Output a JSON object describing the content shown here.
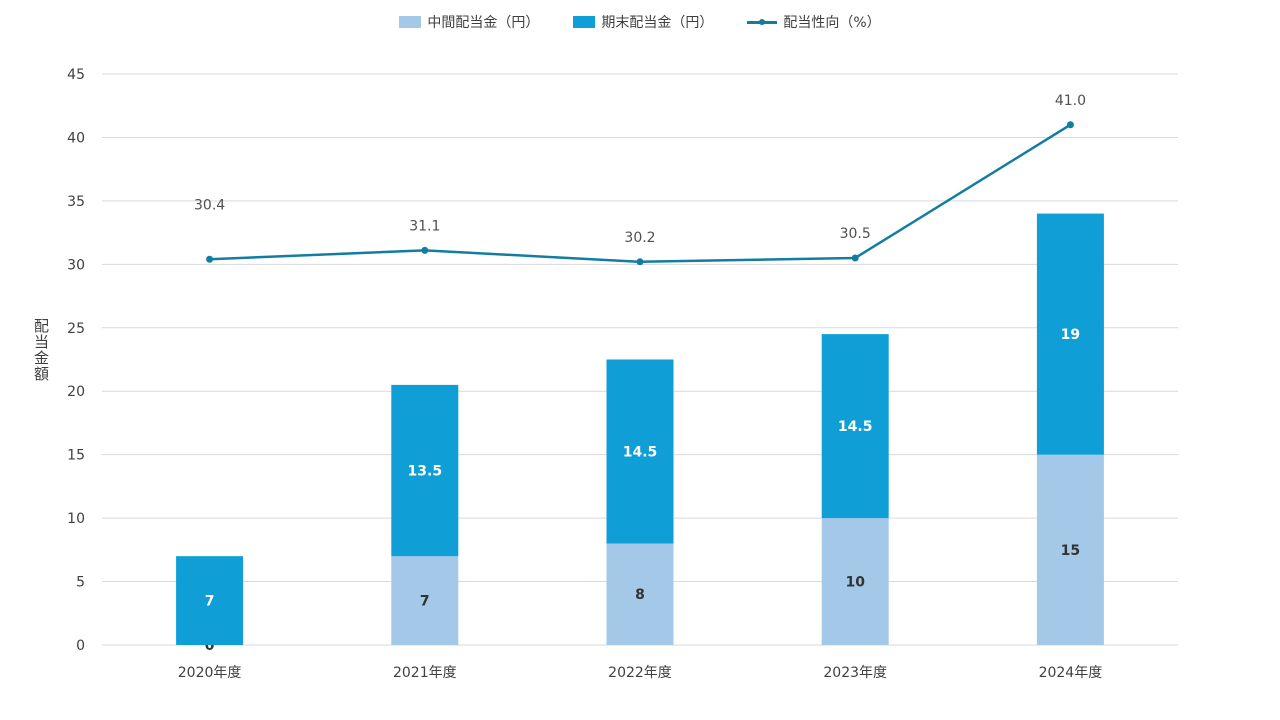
{
  "chart_data": {
    "type": "bar",
    "stacked": true,
    "categories": [
      "2020年度",
      "2021年度",
      "2022年度",
      "2023年度",
      "2024年度"
    ],
    "series": [
      {
        "name": "中間配当金（円）",
        "type": "bar",
        "values": [
          0,
          7,
          8,
          10,
          15
        ],
        "color": "#A3C8E8",
        "label_color": "#333333"
      },
      {
        "name": "期末配当金（円）",
        "type": "bar",
        "values": [
          7,
          13.5,
          14.5,
          14.5,
          19
        ],
        "color": "#0F9ED5",
        "label_color": "#FFFFFF"
      },
      {
        "name": "配当性向（%）",
        "type": "line",
        "values": [
          30.4,
          31.1,
          30.2,
          30.5,
          41.0
        ],
        "labels": [
          "30.4",
          "31.1",
          "30.2",
          "30.5",
          "41.0"
        ],
        "color": "#127CA1"
      }
    ],
    "ylabel": "配当金額",
    "ylim": [
      0,
      45
    ],
    "yticks": [
      0,
      5,
      10,
      15,
      20,
      25,
      30,
      35,
      40,
      45
    ],
    "grid": true,
    "legend": "top-center"
  }
}
